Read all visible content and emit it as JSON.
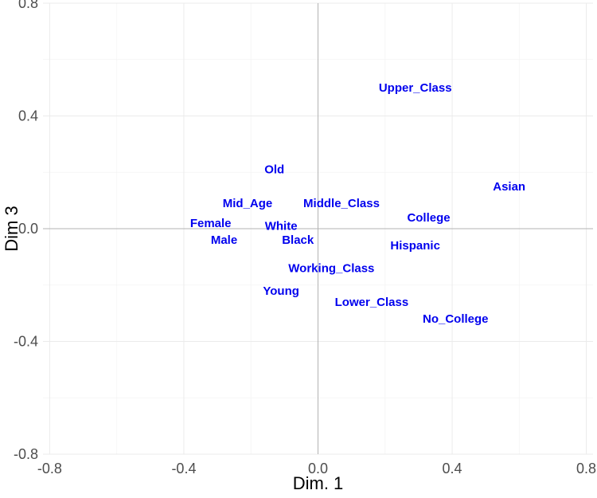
{
  "chart_data": {
    "type": "scatter",
    "title": "",
    "xlabel": "Dim. 1",
    "ylabel": "Dim 3",
    "xlim": [
      -0.82,
      0.82
    ],
    "ylim": [
      -0.8,
      0.8
    ],
    "x_ticks": [
      -0.8,
      -0.4,
      0.0,
      0.4,
      0.8
    ],
    "y_ticks": [
      -0.8,
      -0.4,
      0.0,
      0.4,
      0.8
    ],
    "x_tick_labels": [
      "-0.8",
      "-0.4",
      "0.0",
      "0.4",
      "0.8"
    ],
    "y_tick_labels": [
      "-0.8",
      "-0.4",
      "0.0",
      "0.4",
      "0.8"
    ],
    "grid": true,
    "label_color": "#0000ee",
    "points": [
      {
        "label": "Upper_Class",
        "x": 0.29,
        "y": 0.5
      },
      {
        "label": "Old",
        "x": -0.13,
        "y": 0.21
      },
      {
        "label": "Asian",
        "x": 0.57,
        "y": 0.15
      },
      {
        "label": "Mid_Age",
        "x": -0.21,
        "y": 0.09
      },
      {
        "label": "Middle_Class",
        "x": 0.07,
        "y": 0.09
      },
      {
        "label": "College",
        "x": 0.33,
        "y": 0.04
      },
      {
        "label": "Female",
        "x": -0.32,
        "y": 0.02
      },
      {
        "label": "White",
        "x": -0.11,
        "y": 0.01
      },
      {
        "label": "Male",
        "x": -0.28,
        "y": -0.04
      },
      {
        "label": "Black",
        "x": -0.06,
        "y": -0.04
      },
      {
        "label": "Hispanic",
        "x": 0.29,
        "y": -0.06
      },
      {
        "label": "Working_Class",
        "x": 0.04,
        "y": -0.14
      },
      {
        "label": "Young",
        "x": -0.11,
        "y": -0.22
      },
      {
        "label": "Lower_Class",
        "x": 0.16,
        "y": -0.26
      },
      {
        "label": "No_College",
        "x": 0.41,
        "y": -0.32
      }
    ]
  }
}
